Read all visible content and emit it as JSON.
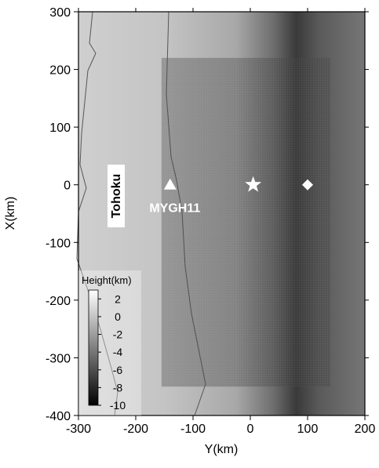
{
  "chart_data": {
    "type": "map",
    "xlabel": "Y(km)",
    "ylabel": "X(km)",
    "xlim": [
      -300,
      200
    ],
    "ylim": [
      -400,
      300
    ],
    "xticks": [
      -300,
      -200,
      -100,
      0,
      100,
      200
    ],
    "yticks": [
      -400,
      -300,
      -200,
      -100,
      0,
      100,
      200,
      300
    ],
    "region": {
      "xlim": [
        -155,
        140
      ],
      "ylim": [
        -350,
        220
      ]
    },
    "annotation": "Tohoku",
    "stations": [
      {
        "label": "MYGH11",
        "x": -140,
        "y": 0,
        "marker": "triangle"
      }
    ],
    "points": [
      {
        "x": 5,
        "y": 0,
        "marker": "star"
      },
      {
        "x": 100,
        "y": 0,
        "marker": "diamond"
      }
    ],
    "colorbar": {
      "title": "Height(km)",
      "lim": [
        -10,
        3
      ],
      "ticks": [
        2,
        0,
        -2,
        -4,
        -6,
        -8,
        -10
      ],
      "colors": [
        "#000000",
        "#ffffff"
      ]
    }
  }
}
